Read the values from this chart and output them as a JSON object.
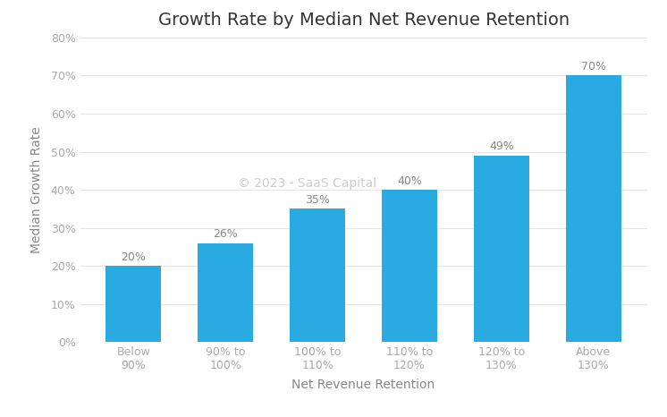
{
  "title": "Growth Rate by Median Net Revenue Retention",
  "xlabel": "Net Revenue Retention",
  "ylabel": "Median Growth Rate",
  "categories": [
    "Below\n90%",
    "90% to\n100%",
    "100% to\n110%",
    "110% to\n120%",
    "120% to\n130%",
    "Above\n130%"
  ],
  "values": [
    0.2,
    0.26,
    0.35,
    0.4,
    0.49,
    0.7
  ],
  "labels": [
    "20%",
    "26%",
    "35%",
    "40%",
    "49%",
    "70%"
  ],
  "bar_color": "#29ABE2",
  "background_color": "#FFFFFF",
  "watermark": "© 2023 - SaaS Capital",
  "watermark_color": "#CCCCCC",
  "ylim": [
    0,
    0.8
  ],
  "yticks": [
    0.0,
    0.1,
    0.2,
    0.3,
    0.4,
    0.5,
    0.6,
    0.7,
    0.8
  ],
  "title_fontsize": 14,
  "axis_label_fontsize": 10,
  "tick_fontsize": 9,
  "bar_label_fontsize": 9,
  "watermark_fontsize": 10,
  "tick_color": "#AAAAAA",
  "label_color": "#888888",
  "title_color": "#333333"
}
